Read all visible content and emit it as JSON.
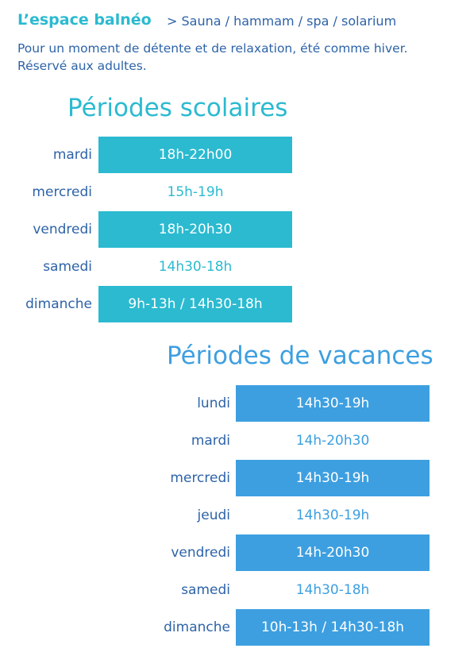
{
  "header": {
    "title": "L’espace balnéo",
    "breadcrumb": "> Sauna / hammam / spa / solarium",
    "description": [
      "Pour un moment de détente et de relaxation, été comme hiver.",
      "Réservé aux adultes."
    ]
  },
  "sections": [
    {
      "title": "Périodes scolaires",
      "rows": [
        [
          "mardi",
          "18h-22h00"
        ],
        [
          "mercredi",
          "15h-19h"
        ],
        [
          "vendredi",
          "18h-20h30"
        ],
        [
          "samedi",
          "14h30-18h"
        ],
        [
          "dimanche",
          "9h-13h / 14h30-18h"
        ]
      ]
    },
    {
      "title": "Périodes de vacances",
      "rows": [
        [
          "lundi",
          "14h30-19h"
        ],
        [
          "mardi",
          "14h-20h30"
        ],
        [
          "mercredi",
          "14h30-19h"
        ],
        [
          "jeudi",
          "14h30-19h"
        ],
        [
          "vendredi",
          "14h-20h30"
        ],
        [
          "samedi",
          "14h30-18h"
        ],
        [
          "dimanche",
          "10h-13h / 14h30-18h"
        ]
      ]
    }
  ]
}
